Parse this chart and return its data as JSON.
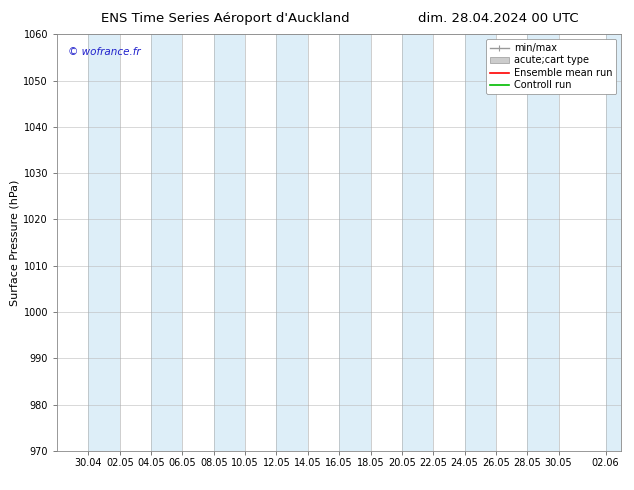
{
  "title_left": "ENS Time Series Aéroport d'Auckland",
  "title_right": "dim. 28.04.2024 00 UTC",
  "ylabel": "Surface Pressure (hPa)",
  "ylim": [
    970,
    1060
  ],
  "yticks": [
    970,
    980,
    990,
    1000,
    1010,
    1020,
    1030,
    1040,
    1050,
    1060
  ],
  "xtick_labels": [
    "30.04",
    "02.05",
    "04.05",
    "06.05",
    "08.05",
    "10.05",
    "12.05",
    "14.05",
    "16.05",
    "18.05",
    "20.05",
    "22.05",
    "24.05",
    "26.05",
    "28.05",
    "30.05",
    "02.06"
  ],
  "watermark": "© wofrance.fr",
  "watermark_color": "#2222cc",
  "bg_color": "#ffffff",
  "plot_bg_color": "#ffffff",
  "shaded_color": "#ddeef8",
  "title_fontsize": 9.5,
  "label_fontsize": 8,
  "tick_fontsize": 7,
  "legend_fontsize": 7
}
